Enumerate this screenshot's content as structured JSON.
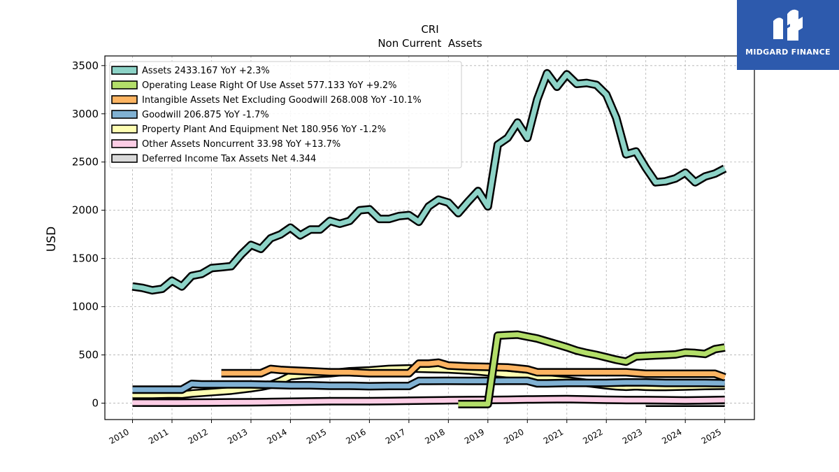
{
  "brand": {
    "name": "MIDGARD FINANCE"
  },
  "chart_data": {
    "type": "line",
    "title": "CRI",
    "subtitle": "Non Current  Assets",
    "xlabel": "",
    "ylabel": "USD",
    "xlim": [
      2009.3,
      2025.75
    ],
    "ylim": [
      -170,
      3600
    ],
    "grid": true,
    "legend_position": "upper left",
    "x_ticks": [
      "2010",
      "2011",
      "2012",
      "2013",
      "2014",
      "2015",
      "2016",
      "2017",
      "2018",
      "2019",
      "2020",
      "2021",
      "2022",
      "2023",
      "2024",
      "2025"
    ],
    "y_ticks": [
      "0",
      "500",
      "1000",
      "1500",
      "2000",
      "2500",
      "3000",
      "3500"
    ],
    "series": [
      {
        "name": "Assets",
        "legend": "Assets  2433.167 YoY +2.3%",
        "color": "#8dd3c7",
        "x": [
          2010.0,
          2010.25,
          2010.5,
          2010.75,
          2011.0,
          2011.25,
          2011.5,
          2011.75,
          2012.0,
          2012.25,
          2012.5,
          2012.75,
          2013.0,
          2013.25,
          2013.5,
          2013.75,
          2014.0,
          2014.25,
          2014.5,
          2014.75,
          2015.0,
          2015.25,
          2015.5,
          2015.75,
          2016.0,
          2016.25,
          2016.5,
          2016.75,
          2017.0,
          2017.25,
          2017.5,
          2017.75,
          2018.0,
          2018.25,
          2018.5,
          2018.75,
          2019.0,
          2019.25,
          2019.5,
          2019.75,
          2020.0,
          2020.25,
          2020.5,
          2020.75,
          2021.0,
          2021.25,
          2021.5,
          2021.75,
          2022.0,
          2022.25,
          2022.5,
          2022.75,
          2023.0,
          2023.25,
          2023.5,
          2023.75,
          2024.0,
          2024.25,
          2024.5,
          2024.75,
          2025.0
        ],
        "y": [
          1210,
          1195,
          1170,
          1185,
          1270,
          1210,
          1320,
          1340,
          1400,
          1410,
          1420,
          1540,
          1640,
          1600,
          1710,
          1750,
          1820,
          1740,
          1800,
          1800,
          1890,
          1860,
          1890,
          2000,
          2010,
          1910,
          1910,
          1940,
          1950,
          1880,
          2040,
          2110,
          2080,
          1970,
          2090,
          2200,
          2040,
          2680,
          2750,
          2910,
          2750,
          3150,
          3420,
          3280,
          3410,
          3310,
          3320,
          3300,
          3200,
          2960,
          2580,
          2610,
          2440,
          2290,
          2300,
          2330,
          2390,
          2290,
          2350,
          2380,
          2433
        ]
      },
      {
        "name": "Operating Lease Right Of Use Asset",
        "legend": "Operating Lease Right Of Use Asset  577.133 YoY +9.2%",
        "color": "#b3de69",
        "x": [
          2018.25,
          2018.5,
          2018.75,
          2019.0,
          2019.25,
          2019.5,
          2019.75,
          2020.0,
          2020.25,
          2020.5,
          2020.75,
          2021.0,
          2021.25,
          2021.5,
          2021.75,
          2022.0,
          2022.25,
          2022.5,
          2022.75,
          2023.0,
          2023.25,
          2023.5,
          2023.75,
          2024.0,
          2024.25,
          2024.5,
          2024.75,
          2025.0
        ],
        "y": [
          -10,
          -10,
          -10,
          -10,
          700,
          705,
          710,
          690,
          670,
          640,
          610,
          580,
          545,
          520,
          500,
          475,
          450,
          430,
          485,
          490,
          495,
          500,
          505,
          525,
          520,
          510,
          560,
          577
        ]
      },
      {
        "name": "Intangible Assets Net Excluding Goodwill",
        "legend": "Intangible Assets Net Excluding Goodwill  268.008 YoY -10.1%",
        "color": "#fdb462",
        "x": [
          2012.25,
          2012.5,
          2012.75,
          2013.0,
          2013.25,
          2013.5,
          2013.75,
          2014.0,
          2014.5,
          2015.0,
          2015.5,
          2016.0,
          2016.5,
          2016.75,
          2017.0,
          2017.25,
          2017.5,
          2017.75,
          2018.0,
          2018.5,
          2019.0,
          2019.5,
          2019.75,
          2020.0,
          2020.25,
          2020.5,
          2021.0,
          2021.5,
          2022.0,
          2022.5,
          2023.0,
          2023.5,
          2024.0,
          2024.5,
          2024.75,
          2025.0
        ],
        "y": [
          310,
          310,
          310,
          310,
          310,
          355,
          345,
          340,
          330,
          320,
          320,
          310,
          310,
          310,
          310,
          410,
          410,
          420,
          390,
          380,
          375,
          370,
          360,
          350,
          320,
          320,
          320,
          320,
          320,
          320,
          305,
          305,
          305,
          305,
          305,
          268
        ]
      },
      {
        "name": "Goodwill",
        "legend": "Goodwill  206.875 YoY -1.7%",
        "color": "#80b1d3",
        "x": [
          2010.0,
          2010.5,
          2011.0,
          2011.25,
          2011.5,
          2011.75,
          2012.0,
          2012.5,
          2013.0,
          2013.5,
          2014.0,
          2014.5,
          2015.0,
          2015.5,
          2016.0,
          2016.5,
          2017.0,
          2017.25,
          2017.5,
          2018.0,
          2018.5,
          2019.0,
          2019.5,
          2020.0,
          2020.25,
          2020.5,
          2021.0,
          2021.5,
          2022.0,
          2022.5,
          2023.0,
          2023.5,
          2024.0,
          2024.5,
          2025.0
        ],
        "y": [
          140,
          140,
          140,
          140,
          200,
          195,
          195,
          195,
          195,
          190,
          185,
          185,
          180,
          180,
          175,
          178,
          178,
          230,
          230,
          232,
          230,
          230,
          232,
          232,
          205,
          205,
          210,
          210,
          210,
          215,
          215,
          210,
          210,
          210,
          207
        ]
      },
      {
        "name": "Property Plant And Equipment Net",
        "legend": "Property Plant And Equipment Net  180.956 YoY -1.2%",
        "color": "#ffffb3",
        "x": [
          2010.0,
          2010.5,
          2011.0,
          2011.25,
          2011.5,
          2012.0,
          2012.5,
          2013.0,
          2013.25,
          2013.5,
          2013.75,
          2014.0,
          2014.5,
          2015.0,
          2015.5,
          2016.0,
          2016.5,
          2017.0,
          2017.5,
          2018.0,
          2018.5,
          2019.0,
          2019.5,
          2020.0,
          2020.5,
          2021.0,
          2021.5,
          2022.0,
          2022.25,
          2022.5,
          2022.75,
          2023.0,
          2023.25,
          2023.5,
          2024.0,
          2024.5,
          2025.0
        ],
        "y": [
          85,
          85,
          90,
          88,
          100,
          115,
          130,
          155,
          170,
          190,
          230,
          280,
          300,
          310,
          330,
          340,
          355,
          360,
          355,
          350,
          340,
          320,
          300,
          280,
          255,
          235,
          210,
          185,
          175,
          170,
          175,
          170,
          168,
          168,
          172,
          178,
          181
        ]
      },
      {
        "name": "Other Assets Noncurrent",
        "legend": "Other Assets Noncurrent  33.98 YoY +13.7%",
        "color": "#fccde5",
        "x": [
          2010.0,
          2010.5,
          2011.0,
          2011.5,
          2012.0,
          2012.5,
          2013.0,
          2013.5,
          2014.0,
          2014.5,
          2015.0,
          2015.5,
          2016.0,
          2016.5,
          2017.0,
          2017.5,
          2018.0,
          2018.5,
          2019.0,
          2019.5,
          2020.0,
          2020.5,
          2021.0,
          2021.5,
          2022.0,
          2022.5,
          2023.0,
          2023.5,
          2024.0,
          2024.5,
          2025.0
        ],
        "y": [
          5,
          5,
          5,
          6,
          7,
          8,
          10,
          12,
          15,
          18,
          20,
          20,
          20,
          22,
          25,
          28,
          30,
          32,
          33,
          35,
          38,
          40,
          42,
          38,
          35,
          32,
          32,
          30,
          28,
          30,
          34
        ]
      },
      {
        "name": "Deferred Income Tax Assets Net",
        "legend": "Deferred Income Tax Assets Net  4.344",
        "color": "#d9d9d9",
        "x": [
          2023.0,
          2023.5,
          2024.0,
          2024.5,
          2025.0
        ],
        "y": [
          4,
          4,
          4,
          4,
          4.344
        ]
      }
    ]
  }
}
